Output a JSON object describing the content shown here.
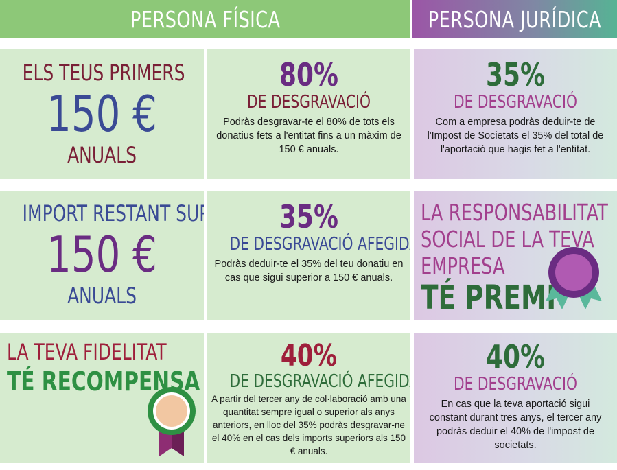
{
  "headers": {
    "fisica": "PERSONA FÍSICA",
    "juridica": "PERSONA JURÍDICA"
  },
  "row1": {
    "left": {
      "top": "ELS TEUS PRIMERS",
      "amount": "150 €",
      "bottom": "ANUALS"
    },
    "mid": {
      "pct": "80%",
      "label": "DE DESGRAVACIÓ",
      "text": "Podràs desgravar-te el 80% de tots els donatius fets a l'entitat fins a un màxim de 150 € anuals."
    },
    "right": {
      "pct": "35%",
      "label": "DE DESGRAVACIÓ",
      "text": "Com a empresa podràs deduir-te de l'Impost de Societats el 35% del total de l'aportació que hagis fet a l'entitat."
    }
  },
  "row2": {
    "left": {
      "top": "IMPORT RESTANT SUPERIOR",
      "amount": "150 €",
      "bottom": "ANUALS"
    },
    "mid": {
      "pct": "35%",
      "label": "DE DESGRAVACIÓ AFEGIDA",
      "text": "Podràs deduir-te el 35% del teu donatiu en cas que sigui superior a 150 € anuals."
    },
    "right": {
      "line1": "LA RESPONSABILITAT",
      "line2": "SOCIAL DE LA TEVA",
      "line3": "EMPRESA",
      "highlight": "TÉ PREMI"
    }
  },
  "row3": {
    "left": {
      "line1": "LA TEVA FIDELITAT",
      "highlight": "TÉ RECOMPENSA"
    },
    "mid": {
      "pct": "40%",
      "label": "DE DESGRAVACIÓ AFEGIDA",
      "text": "A partir del tercer any de col·laboració amb una quantitat sempre igual o superior als anys anteriors, en lloc del 35% podràs desgravar-ne el 40% en el cas dels imports superiors als 150 € anuals."
    },
    "right": {
      "pct": "40%",
      "label": "DE DESGRAVACIÓ",
      "text": "En cas que la teva aportació sigui constant durant tres anys, el tercer any podràs deduir el 40% de l'impost de societats."
    }
  },
  "icons": {
    "badge_purple": "award-ribbon-icon",
    "badge_green": "medal-ribbon-icon"
  },
  "colors": {
    "header_green": "#8dc878",
    "header_purple": "#9b56a6",
    "header_teal": "#56b394",
    "cell_green": "#d6ebcf",
    "cell_purple": "#dcc8e3"
  }
}
